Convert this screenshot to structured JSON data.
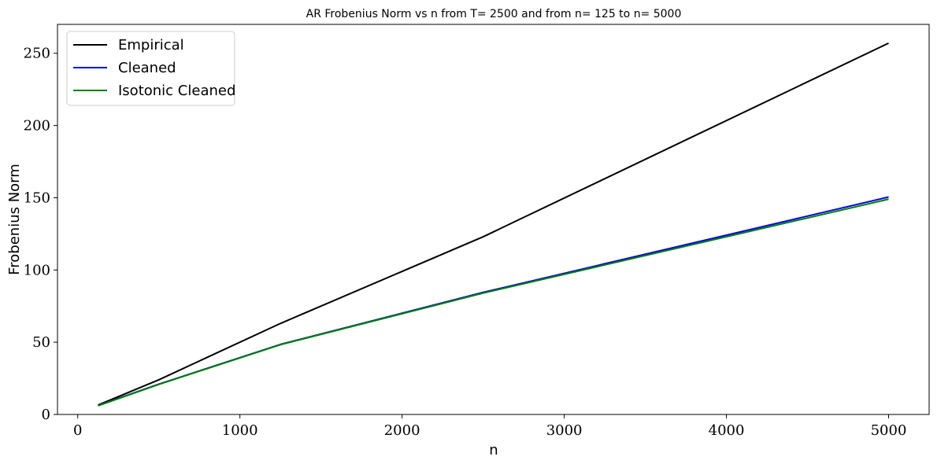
{
  "chart_data": {
    "type": "line",
    "title": "AR Frobenius Norm vs n from T= 2500 and from n= 125 to n= 5000",
    "xlabel": "n",
    "ylabel": "Frobenius Norm",
    "xlim": [
      -125,
      5250
    ],
    "ylim": [
      0,
      270
    ],
    "xticks": [
      0,
      1000,
      2000,
      3000,
      4000,
      5000
    ],
    "yticks": [
      0,
      50,
      100,
      150,
      200,
      250
    ],
    "x": [
      125,
      500,
      1250,
      2500,
      5000
    ],
    "grid": false,
    "legend_position": "top-left",
    "series": [
      {
        "name": "Empirical",
        "color": "#000000",
        "values": [
          6.5,
          24,
          63,
          123,
          257
        ]
      },
      {
        "name": "Cleaned",
        "color": "#0000ff",
        "values": [
          6.2,
          21,
          48.5,
          84.5,
          150.5
        ]
      },
      {
        "name": "Isotonic Cleaned",
        "color": "#008000",
        "values": [
          6.0,
          20.8,
          48.3,
          84,
          149
        ]
      }
    ]
  }
}
